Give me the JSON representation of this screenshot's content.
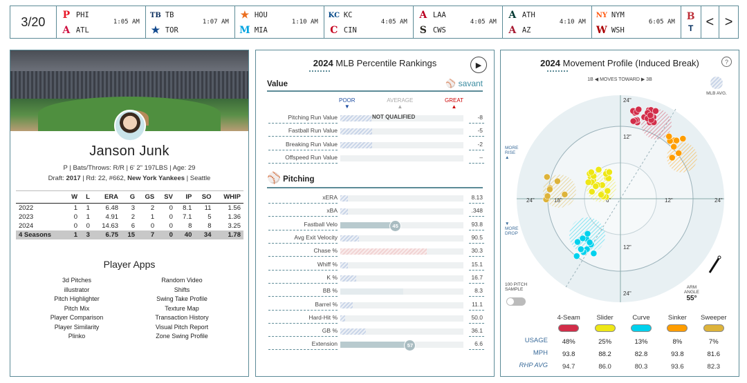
{
  "scorebar": {
    "date": "3/20",
    "games": [
      {
        "away": "PHI",
        "home": "ATL",
        "time": "1:05 AM"
      },
      {
        "away": "TB",
        "home": "TOR",
        "time": "1:07 AM"
      },
      {
        "away": "HOU",
        "home": "MIA",
        "time": "1:10 AM"
      },
      {
        "away": "KC",
        "home": "CIN",
        "time": "4:05 AM"
      },
      {
        "away": "LAA",
        "home": "CWS",
        "time": "4:05 AM"
      },
      {
        "away": "ATH",
        "home": "AZ",
        "time": "4:10 AM"
      },
      {
        "away": "NYM",
        "home": "WSH",
        "time": "6:05 AM"
      }
    ],
    "prev_label": "<",
    "next_label": ">"
  },
  "player": {
    "name": "Janson Junk",
    "info_line1": "P | Bats/Throws: R/R | 6' 2\" 197LBS | Age: 29",
    "draft_prefix": "Draft: ",
    "draft_year": "2017",
    "draft_mid": " | Rd: 22, #662, ",
    "draft_team": "New York Yankees",
    "draft_suffix": " | Seattle",
    "stat_headers": [
      "",
      "W",
      "L",
      "ERA",
      "G",
      "GS",
      "SV",
      "IP",
      "SO",
      "WHIP"
    ],
    "stat_rows": [
      [
        "2022",
        "1",
        "1",
        "6.48",
        "3",
        "2",
        "0",
        "8.1",
        "11",
        "1.56"
      ],
      [
        "2023",
        "0",
        "1",
        "4.91",
        "2",
        "1",
        "0",
        "7.1",
        "5",
        "1.36"
      ],
      [
        "2024",
        "0",
        "0",
        "14.63",
        "6",
        "0",
        "0",
        "8",
        "8",
        "3.25"
      ],
      [
        "4 Seasons",
        "1",
        "3",
        "6.75",
        "15",
        "7",
        "0",
        "40",
        "34",
        "1.78"
      ]
    ],
    "apps_title": "Player Apps",
    "apps": [
      "3d Pitches",
      "Random Video",
      "illustrator",
      "Shifts",
      "Pitch Highlighter",
      "Swing Take Profile",
      "Pitch Mix",
      "Texture Map",
      "Player Comparison",
      "Transaction History",
      "Player Similarity",
      "Visual Pitch Report",
      "Plinko",
      "Zone Swing Profile"
    ]
  },
  "percentile": {
    "year": "2024",
    "title": " MLB Percentile Rankings",
    "value_header": "Value",
    "savant": "savant",
    "scale": {
      "poor": "POOR",
      "average": "AVERAGE",
      "great": "GREAT"
    },
    "not_qualified": "NOT QUALIFIED",
    "value_rows": [
      {
        "label": "Pitching Run Value",
        "value": "-8",
        "pct": 0.25,
        "style": "hatch"
      },
      {
        "label": "Fastball Run Value",
        "value": "-5",
        "pct": 0.26,
        "style": "hatch"
      },
      {
        "label": "Breaking Run Value",
        "value": "-2",
        "pct": 0.26,
        "style": "hatch"
      },
      {
        "label": "Offspeed Run Value",
        "value": "–",
        "pct": 0,
        "style": "hatch"
      }
    ],
    "pitching_header": "Pitching",
    "pitching_rows": [
      {
        "label": "xERA",
        "value": "8.13",
        "pct": 0.06,
        "style": "hatch"
      },
      {
        "label": "xBA",
        "value": ".348",
        "pct": 0.06,
        "style": "hatch"
      },
      {
        "label": "Fastball Velo",
        "value": "93.8",
        "pct": 0.45,
        "style": "solid",
        "badge": "45"
      },
      {
        "label": "Avg Exit Velocity",
        "value": "90.5",
        "pct": 0.15,
        "style": "hatch"
      },
      {
        "label": "Chase %",
        "value": "30.3",
        "pct": 0.7,
        "style": "hatchr"
      },
      {
        "label": "Whiff %",
        "value": "15.1",
        "pct": 0.06,
        "style": "hatch"
      },
      {
        "label": "K %",
        "value": "16.7",
        "pct": 0.13,
        "style": "hatch"
      },
      {
        "label": "BB %",
        "value": "8.3",
        "pct": 0.51,
        "style": "light"
      },
      {
        "label": "Barrel %",
        "value": "11.1",
        "pct": 0.1,
        "style": "hatch"
      },
      {
        "label": "Hard-Hit %",
        "value": "50.0",
        "pct": 0.04,
        "style": "hatch"
      },
      {
        "label": "GB %",
        "value": "36.1",
        "pct": 0.21,
        "style": "hatch"
      },
      {
        "label": "Extension",
        "value": "6.6",
        "pct": 0.57,
        "style": "solid",
        "badge": "57"
      }
    ]
  },
  "movement": {
    "year": "2024",
    "title": " Movement Profile (Induced Break)",
    "help": "?",
    "toward": "1B ◀  MOVES TOWARD  ▶ 3B",
    "mlb_avg": "MLB AVG.",
    "more_rise": "MORE RISE",
    "more_drop": "MORE DROP",
    "sample": "100 PITCH SAMPLE",
    "arm_angle_label": "ARM ANGLE",
    "arm_angle": "55°",
    "rings": [
      "24\"",
      "12\"",
      "12\"",
      "24\"",
      "24\"",
      "18\"",
      "6\"",
      "12\"",
      "24\""
    ],
    "pitches": [
      {
        "name": "4-Seam",
        "color": "#d22d49",
        "usage": "48%",
        "mph": "93.8",
        "rhp": "94.7"
      },
      {
        "name": "Slider",
        "color": "#eee716",
        "usage": "25%",
        "mph": "88.2",
        "rhp": "86.0"
      },
      {
        "name": "Curve",
        "color": "#00d1ed",
        "usage": "13%",
        "mph": "82.8",
        "rhp": "80.3"
      },
      {
        "name": "Sinker",
        "color": "#fe9d00",
        "usage": "8%",
        "mph": "93.8",
        "rhp": "93.6"
      },
      {
        "name": "Sweeper",
        "color": "#ddb33a",
        "usage": "7%",
        "mph": "81.6",
        "rhp": "82.3"
      }
    ],
    "row_labels": {
      "usage": "USAGE",
      "mph": "MPH",
      "rhp": "RHP AVG"
    }
  }
}
